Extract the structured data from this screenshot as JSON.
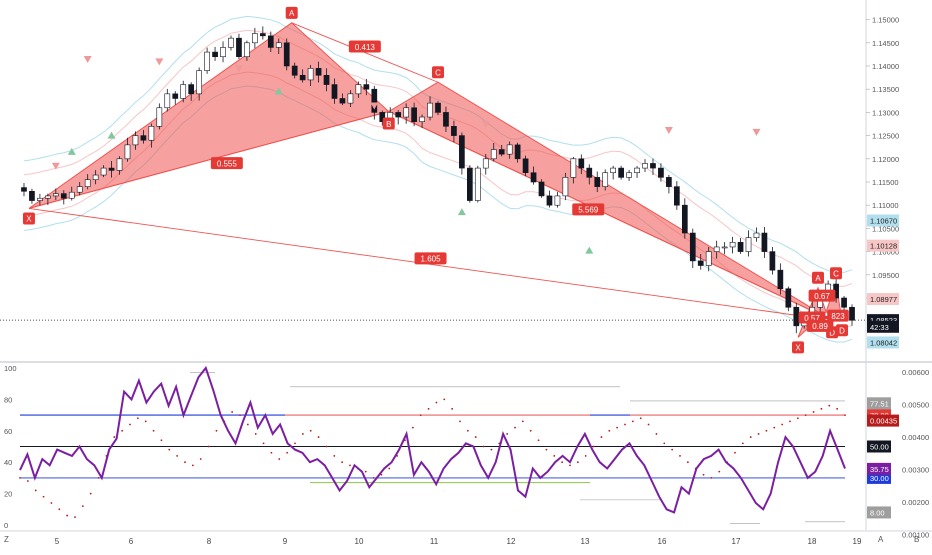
{
  "chart_data": [
    {
      "type": "candlestick",
      "pair_note": "",
      "price_axis": {
        "ticks": [
          "1.15000",
          "1.14500",
          "1.14000",
          "1.13500",
          "1.13000",
          "1.12500",
          "1.12000",
          "1.11500",
          "1.11000",
          "1.10500",
          "1.10000",
          "1.09500",
          "1.09000"
        ],
        "range": [
          1.0775,
          1.1525
        ]
      },
      "price_badges": [
        {
          "label": "1.10670",
          "price": 1.1067,
          "color": "#b2dfee"
        },
        {
          "label": "1.10128",
          "price": 1.10128,
          "color": "#f7c6c6"
        },
        {
          "label": "1.08977",
          "price": 1.08977,
          "color": "#f7c6c6"
        },
        {
          "label": "1.08523",
          "price": 1.08523,
          "color": "#131722"
        },
        {
          "label": "42:33",
          "price": 1.0838,
          "color": "#131722"
        },
        {
          "label": "1.08042",
          "price": 1.08042,
          "color": "#b2dfee"
        }
      ],
      "current_price": 1.08523,
      "time_axis": [
        "5",
        "6",
        "8",
        "9",
        "10",
        "11",
        "12",
        "13",
        "16",
        "17",
        "18",
        "19"
      ],
      "pattern_points": [
        {
          "label": "X",
          "time": 0.3,
          "price": 1.1093
        },
        {
          "label": "A",
          "time": 9.1,
          "price": 1.1493
        },
        {
          "label": "B",
          "time": 12.35,
          "price": 1.1302
        },
        {
          "label": "C",
          "time": 14.0,
          "price": 1.1365
        },
        {
          "label": "D",
          "time": 27.2,
          "price": 1.0852
        }
      ],
      "ratios": [
        {
          "label": "0.413",
          "between": "A-C"
        },
        {
          "label": "0.555",
          "between": "X-B"
        },
        {
          "label": "5.569",
          "between": "B-D"
        },
        {
          "label": "1.605",
          "between": "X-D"
        }
      ],
      "small_pattern": {
        "points": [
          "X",
          "A",
          "B",
          "C",
          "D"
        ],
        "ratios": [
          "0.67",
          "0.57",
          "0.89",
          "823"
        ]
      },
      "series": [
        {
          "name": "",
          "values": [
            1.113,
            1.111,
            1.1115,
            1.112,
            1.1125,
            1.1115,
            1.1128,
            1.114,
            1.1155,
            1.1165,
            1.118,
            1.1175,
            1.12,
            1.123,
            1.125,
            1.124,
            1.127,
            1.131,
            1.134,
            1.133,
            1.136,
            1.134,
            1.139,
            1.143,
            1.142,
            1.144,
            1.146,
            1.142,
            1.145,
            1.147,
            1.1465,
            1.144,
            1.145,
            1.14,
            1.138,
            1.137,
            1.1395,
            1.138,
            1.136,
            1.133,
            1.132,
            1.134,
            1.136,
            1.135,
            1.13,
            1.128,
            1.13,
            1.129,
            1.131,
            1.128,
            1.129,
            1.132,
            1.13,
            1.127,
            1.125,
            1.118,
            1.111,
            1.118,
            1.12,
            1.122,
            1.121,
            1.123,
            1.12,
            1.117,
            1.115,
            1.112,
            1.11,
            1.112,
            1.116,
            1.12,
            1.118,
            1.116,
            1.114,
            1.117,
            1.118,
            1.116,
            1.117,
            1.118,
            1.119,
            1.118,
            1.116,
            1.114,
            1.11,
            1.104,
            1.098,
            1.097,
            1.1,
            1.101,
            1.101,
            1.102,
            1.1,
            1.103,
            1.104,
            1.1,
            1.096,
            1.092,
            1.088,
            1.084,
            1.085,
            1.088,
            1.091,
            1.093,
            1.09,
            1.088,
            1.0852
          ]
        }
      ]
    },
    {
      "type": "line",
      "indicator": "oscillator",
      "y_ticks": [
        "100",
        "80",
        "60",
        "40",
        "20",
        "0"
      ],
      "ylim": [
        0,
        100
      ],
      "right_ticks": [
        "0.00600",
        "0.00500",
        "0.00400",
        "0.00300",
        "0.00200",
        "0.00100"
      ],
      "levels": [
        {
          "label": "70.00",
          "value": 70,
          "color": "#e53935"
        },
        {
          "label": "50.00",
          "value": 50,
          "color": "#131722"
        },
        {
          "label": "30.00",
          "value": 30,
          "color": "#1e3ad8"
        }
      ],
      "badges": [
        {
          "label": "77.51",
          "value": 77.51,
          "color": "#9e9e9e"
        },
        {
          "label": "0.00435",
          "value": 66.5,
          "color": "#b71c1c"
        },
        {
          "label": "35.75",
          "value": 35.75,
          "color": "#7b1fa2"
        },
        {
          "label": "8.00",
          "value": 8,
          "color": "#9e9e9e"
        }
      ],
      "series": [
        {
          "name": "",
          "values": [
            35,
            45,
            30,
            42,
            38,
            48,
            46,
            44,
            50,
            42,
            38,
            30,
            48,
            55,
            85,
            80,
            92,
            78,
            85,
            90,
            76,
            88,
            70,
            82,
            94,
            100,
            86,
            70,
            60,
            52,
            66,
            78,
            62,
            70,
            58,
            64,
            52,
            48,
            46,
            40,
            42,
            38,
            30,
            22,
            28,
            38,
            34,
            24,
            30,
            36,
            40,
            48,
            58,
            32,
            40,
            34,
            26,
            36,
            42,
            46,
            52,
            50,
            38,
            30,
            40,
            58,
            48,
            22,
            18,
            36,
            30,
            34,
            40,
            44,
            40,
            50,
            58,
            48,
            40,
            36,
            42,
            48,
            52,
            44,
            38,
            28,
            18,
            10,
            8,
            24,
            20,
            36,
            42,
            44,
            48,
            40,
            36,
            30,
            22,
            14,
            10,
            20,
            40,
            56,
            50,
            40,
            30,
            34,
            44,
            60,
            48,
            36
          ]
        },
        {
          "name": "",
          "values": [
            30,
            28,
            22,
            18,
            14,
            10,
            6,
            5,
            12,
            20,
            30,
            44,
            56,
            60,
            64,
            68,
            66,
            60,
            54,
            48,
            44,
            40,
            38,
            42,
            50,
            60,
            66,
            72,
            70,
            64,
            58,
            52,
            46,
            42,
            46,
            52,
            58,
            60,
            56,
            50,
            44,
            40,
            38,
            36,
            34,
            30,
            32,
            36,
            44,
            54,
            62,
            70,
            74,
            78,
            80,
            74,
            66,
            60,
            56,
            50,
            48,
            52,
            58,
            62,
            66,
            60,
            54,
            48,
            44,
            40,
            38,
            40,
            44,
            50,
            56,
            60,
            62,
            64,
            66,
            68,
            64,
            58,
            52,
            48,
            44,
            40,
            36,
            32,
            30,
            34,
            40,
            46,
            52,
            56,
            58,
            60,
            62,
            64,
            66,
            68,
            70,
            72,
            74,
            76,
            74,
            70
          ]
        }
      ]
    }
  ],
  "misc": {
    "corner_left": "Z",
    "corner_axis_a": "A",
    "corner_axis_b": "B"
  },
  "colors": {
    "up": "#ffffff",
    "down": "#131722",
    "pattern_fill": "#ef5350",
    "label_bg": "#e53935",
    "osc_line": "#7b1fa2",
    "upper_band": "#b2dfee",
    "lower_band": "#f7c6c6"
  }
}
